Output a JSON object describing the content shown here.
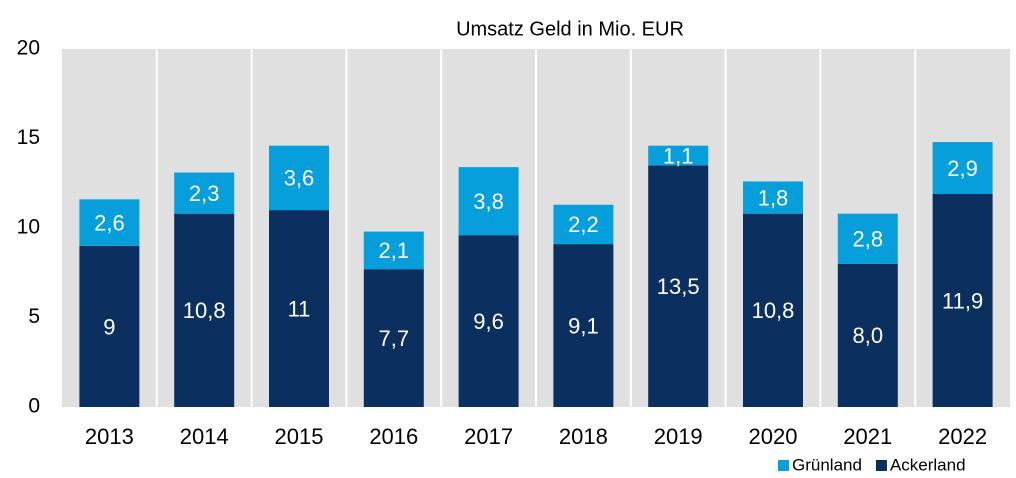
{
  "chart_data": {
    "type": "stacked_bar",
    "title": "Umsatz Geld in Mio. EUR",
    "categories": [
      "2013",
      "2014",
      "2015",
      "2016",
      "2017",
      "2018",
      "2019",
      "2020",
      "2021",
      "2022"
    ],
    "series": [
      {
        "name": "Ackerland",
        "color": "#0b3060",
        "values": [
          9,
          10.8,
          11,
          7.7,
          9.6,
          9.1,
          13.5,
          10.8,
          8.0,
          11.9
        ],
        "value_labels": [
          "9",
          "10,8",
          "11",
          "7,7",
          "9,6",
          "9,1",
          "13,5",
          "10,8",
          "8,0",
          "11,9"
        ]
      },
      {
        "name": "Grünland",
        "color": "#069fdc",
        "values": [
          2.6,
          2.3,
          3.6,
          2.1,
          3.8,
          2.2,
          1.1,
          1.8,
          2.8,
          2.9
        ],
        "value_labels": [
          "2,6",
          "2,3",
          "3,6",
          "2,1",
          "3,8",
          "2,2",
          "1,1",
          "1,8",
          "2,8",
          "2,9"
        ]
      }
    ],
    "ylim": [
      0,
      20
    ],
    "yticks": [
      0,
      5,
      10,
      15,
      20
    ],
    "legend": "bottom-right"
  }
}
